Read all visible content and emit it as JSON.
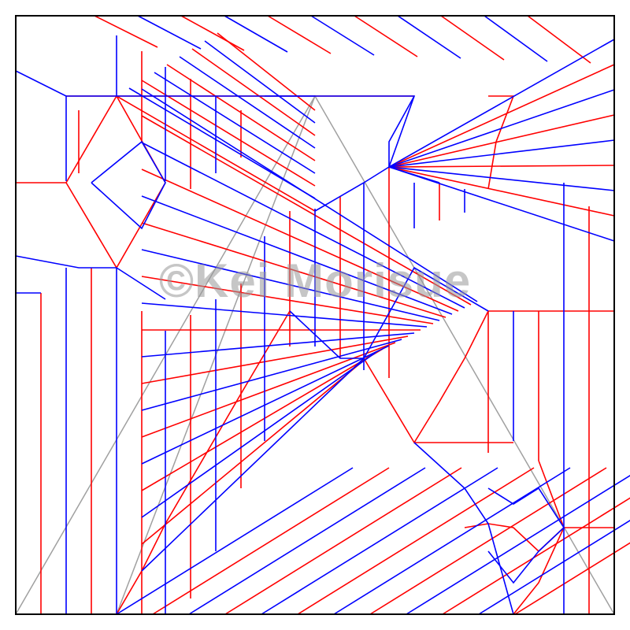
{
  "watermark": {
    "text": "©Kei Morisue"
  },
  "colors": {
    "paper": "#ffffff",
    "border": "#000000",
    "mountain": "#0000ff",
    "valley": "#ff0000",
    "guide": "#a0a0a0",
    "watermark": "#999999"
  },
  "legend_concepts": [
    "mountain-fold",
    "valley-fold",
    "reference-line"
  ]
}
